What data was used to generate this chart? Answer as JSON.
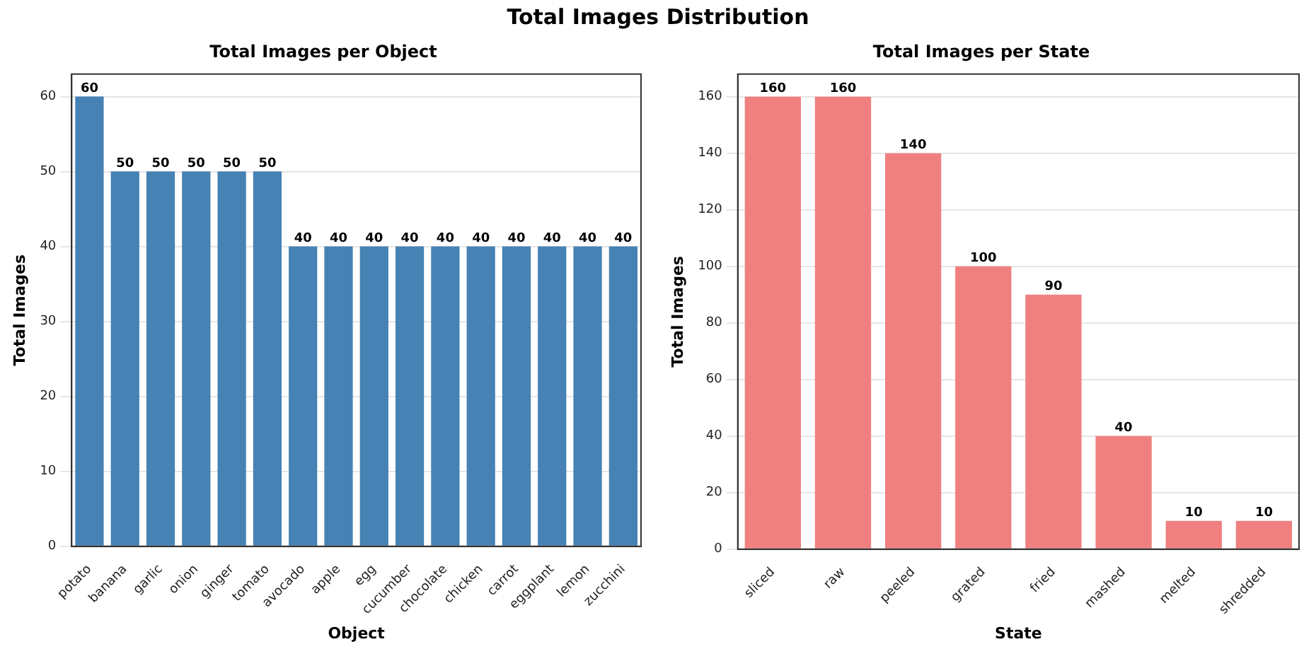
{
  "chart_data": [
    {
      "type": "other",
      "title": "Total Images Distribution"
    },
    {
      "type": "bar",
      "title": "Total Images per Object",
      "xlabel": "Object",
      "ylabel": "Total Images",
      "categories": [
        "potato",
        "banana",
        "garlic",
        "onion",
        "ginger",
        "tomato",
        "avocado",
        "apple",
        "egg",
        "cucumber",
        "chocolate",
        "chicken",
        "carrot",
        "eggplant",
        "lemon",
        "zucchini"
      ],
      "values": [
        60,
        50,
        50,
        50,
        50,
        50,
        40,
        40,
        40,
        40,
        40,
        40,
        40,
        40,
        40,
        40
      ],
      "color": "#4682b4",
      "ylim": [
        0,
        63
      ],
      "yticks": [
        0,
        10,
        20,
        30,
        40,
        50,
        60
      ],
      "grid": "y",
      "data_labels": true,
      "legend": false
    },
    {
      "type": "bar",
      "title": "Total Images per State",
      "xlabel": "State",
      "ylabel": "Total Images",
      "categories": [
        "sliced",
        "raw",
        "peeled",
        "grated",
        "fried",
        "mashed",
        "melted",
        "shredded"
      ],
      "values": [
        160,
        160,
        140,
        100,
        90,
        40,
        10,
        10
      ],
      "color": "#f08080",
      "ylim": [
        0,
        168
      ],
      "yticks": [
        0,
        20,
        40,
        60,
        80,
        100,
        120,
        140,
        160
      ],
      "grid": "y",
      "data_labels": true,
      "legend": false
    }
  ]
}
